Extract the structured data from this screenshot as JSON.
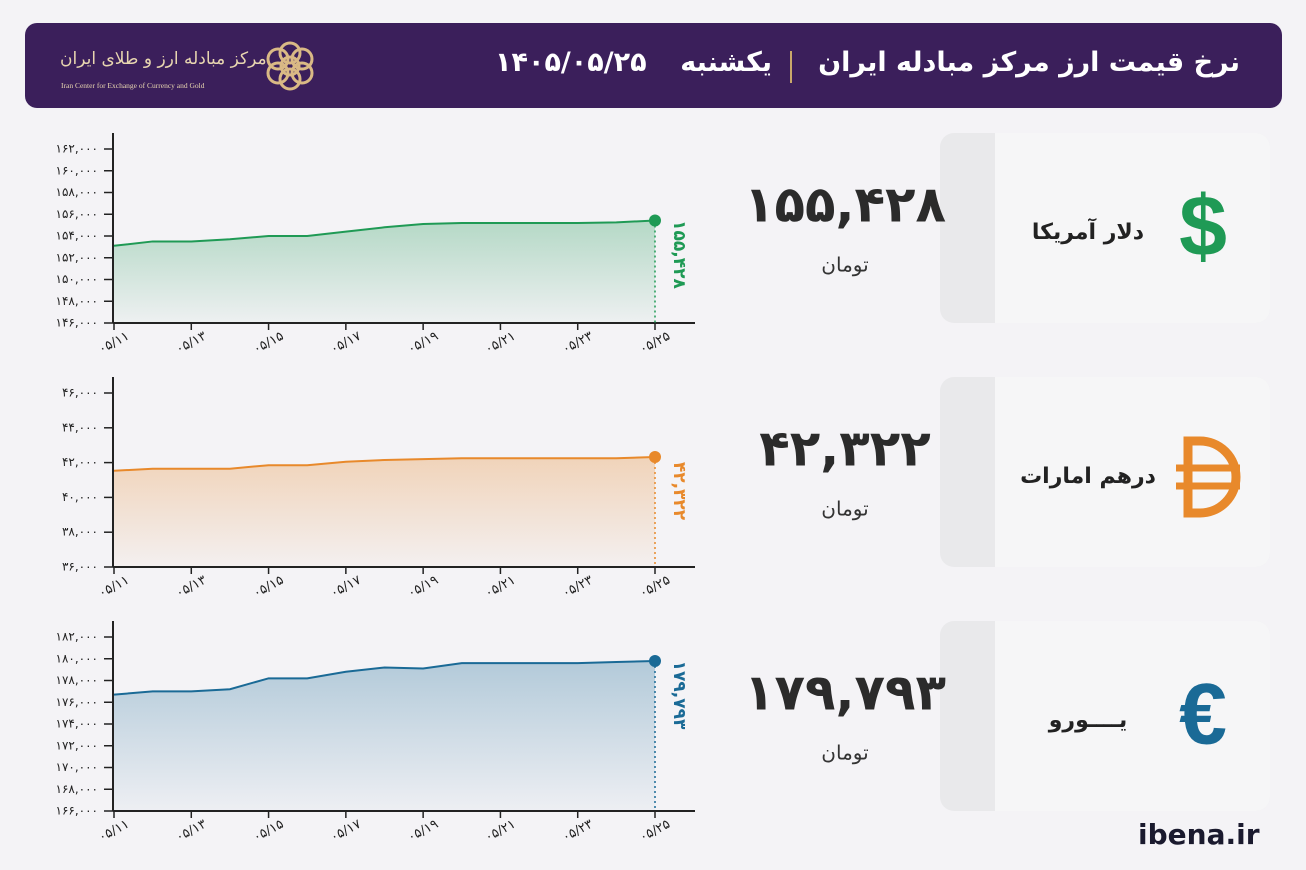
{
  "header": {
    "title": "نرخ قیمت ارز مرکز مبادله ایران",
    "day": "یکشنبه",
    "date": "۱۴۰۵/۰۵/۲۵",
    "logo_fa": "مرکز مبادله ارز و طلای ایران",
    "logo_en": "Iran Center for Exchange of Currency and Gold"
  },
  "footer": "ibena.ir",
  "chart_data": [
    {
      "type": "line",
      "name": "دلار آمریکا",
      "symbol": "$",
      "unit": "تومان",
      "color": "#1f9a55",
      "categories": [
        "۰۵/۱۱",
        null,
        "۰۵/۱۳",
        null,
        "۰۵/۱۵",
        null,
        "۰۵/۱۷",
        null,
        "۰۵/۱۹",
        null,
        "۰۵/۲۱",
        null,
        "۰۵/۲۳",
        null,
        "۰۵/۲۵"
      ],
      "values": [
        153100,
        153500,
        153500,
        153700,
        154000,
        154000,
        154400,
        154800,
        155100,
        155200,
        155200,
        155200,
        155200,
        155250,
        155428
      ],
      "value_labels": [
        null,
        null,
        null,
        null,
        null,
        null,
        null,
        null,
        null,
        null,
        null,
        null,
        null,
        null,
        "۱۵۵,۴۲۸"
      ],
      "ylim": [
        146000,
        162000
      ],
      "yticks": [
        {
          "value": 146000,
          "label": "۱۴۶,۰۰۰"
        },
        {
          "value": 148000,
          "label": "۱۴۸,۰۰۰"
        },
        {
          "value": 150000,
          "label": "۱۵۰,۰۰۰"
        },
        {
          "value": 152000,
          "label": "۱۵۲,۰۰۰"
        },
        {
          "value": 154000,
          "label": "۱۵۴,۰۰۰"
        },
        {
          "value": 156000,
          "label": "۱۵۶,۰۰۰"
        },
        {
          "value": 158000,
          "label": "۱۵۸,۰۰۰"
        },
        {
          "value": 160000,
          "label": "۱۶۰,۰۰۰"
        },
        {
          "value": 162000,
          "label": "۱۶۲,۰۰۰"
        }
      ]
    },
    {
      "type": "line",
      "name": "درهم امارات",
      "unit": "تومان",
      "color": "#e8892b",
      "categories": [
        "۰۵/۱۱",
        null,
        "۰۵/۱۳",
        null,
        "۰۵/۱۵",
        null,
        "۰۵/۱۷",
        null,
        "۰۵/۱۹",
        null,
        "۰۵/۲۱",
        null,
        "۰۵/۲۳",
        null,
        "۰۵/۲۵"
      ],
      "values": [
        41530,
        41650,
        41650,
        41650,
        41850,
        41850,
        42050,
        42150,
        42200,
        42250,
        42250,
        42250,
        42250,
        42250,
        42322
      ],
      "value_labels": [
        null,
        null,
        null,
        null,
        null,
        null,
        null,
        null,
        null,
        null,
        null,
        null,
        null,
        null,
        "۴۲,۳۲۲"
      ],
      "ylim": [
        36000,
        46000
      ],
      "yticks": [
        {
          "value": 36000,
          "label": "۳۶,۰۰۰"
        },
        {
          "value": 38000,
          "label": "۳۸,۰۰۰"
        },
        {
          "value": 40000,
          "label": "۴۰,۰۰۰"
        },
        {
          "value": 42000,
          "label": "۴۲,۰۰۰"
        },
        {
          "value": 44000,
          "label": "۴۴,۰۰۰"
        },
        {
          "value": 46000,
          "label": "۴۶,۰۰۰"
        }
      ]
    },
    {
      "type": "line",
      "name": "یــــورو",
      "symbol": "€",
      "unit": "تومان",
      "color": "#1a6a96",
      "categories": [
        "۰۵/۱۱",
        null,
        "۰۵/۱۳",
        null,
        "۰۵/۱۵",
        null,
        "۰۵/۱۷",
        null,
        "۰۵/۱۹",
        null,
        "۰۵/۲۱",
        null,
        "۰۵/۲۳",
        null,
        "۰۵/۲۵"
      ],
      "values": [
        176700,
        177000,
        177000,
        177200,
        178200,
        178200,
        178800,
        179200,
        179100,
        179600,
        179600,
        179600,
        179600,
        179700,
        179793
      ],
      "value_labels": [
        null,
        null,
        null,
        null,
        null,
        null,
        null,
        null,
        null,
        null,
        null,
        null,
        null,
        null,
        "۱۷۹,۷۹۳"
      ],
      "ylim": [
        166000,
        182000
      ],
      "yticks": [
        {
          "value": 166000,
          "label": "۱۶۶,۰۰۰"
        },
        {
          "value": 168000,
          "label": "۱۶۸,۰۰۰"
        },
        {
          "value": 170000,
          "label": "۱۷۰,۰۰۰"
        },
        {
          "value": 172000,
          "label": "۱۷۲,۰۰۰"
        },
        {
          "value": 174000,
          "label": "۱۷۴,۰۰۰"
        },
        {
          "value": 176000,
          "label": "۱۷۶,۰۰۰"
        },
        {
          "value": 178000,
          "label": "۱۷۸,۰۰۰"
        },
        {
          "value": 180000,
          "label": "۱۸۰,۰۰۰"
        },
        {
          "value": 182000,
          "label": "۱۸۲,۰۰۰"
        }
      ]
    }
  ]
}
